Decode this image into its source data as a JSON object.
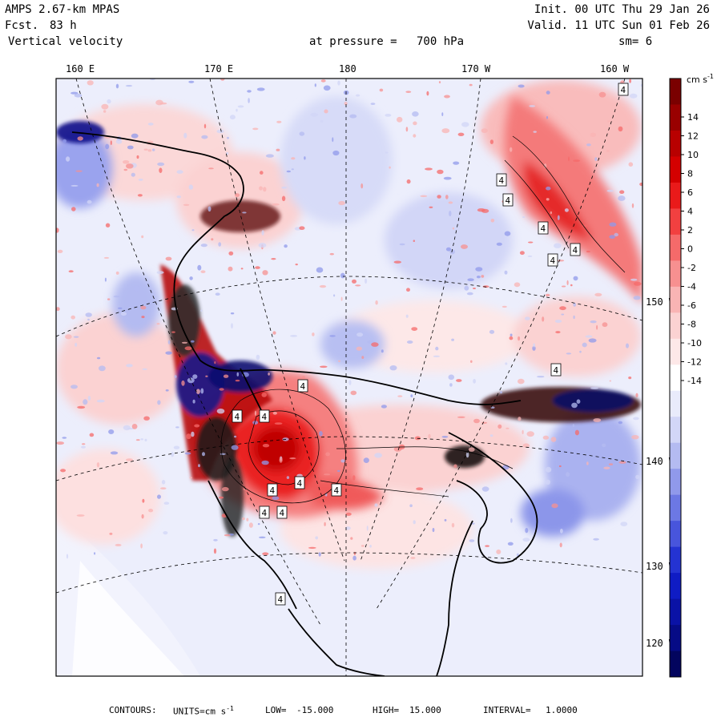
{
  "header": {
    "model": "AMPS 2.67-km MPAS",
    "fcst_label": "Fcst.",
    "fcst_value": "83 h",
    "field": "Vertical velocity",
    "pressure_label": "at pressure =",
    "pressure_value": "700 hPa",
    "init": "Init. 00 UTC Thu 29 Jan 26",
    "valid": "Valid. 11 UTC Sun 01 Feb 26",
    "smoothing": "sm= 6"
  },
  "map": {
    "longitude_labels": [
      "160 E",
      "170 E",
      "180",
      "170 W",
      "160 W"
    ],
    "latitude_labels": [
      "150 W",
      "140 W",
      "130 W",
      "120 W"
    ],
    "contour_markers": [
      "4",
      "4",
      "4",
      "4",
      "4",
      "4",
      "4",
      "4",
      "4",
      "4",
      "4",
      "4",
      "4",
      "4",
      "4",
      "4"
    ]
  },
  "colorbar": {
    "units": "cm s",
    "units_exp": "-1",
    "ticks": [
      "14",
      "12",
      "10",
      "8",
      "6",
      "4",
      "2",
      "0",
      "-2",
      "-4",
      "-6",
      "-8",
      "-10",
      "-12",
      "-14"
    ],
    "colors": [
      "#7a0000",
      "#990000",
      "#b80000",
      "#d40000",
      "#ea1a1a",
      "#f24040",
      "#f56a6a",
      "#f79090",
      "#f9b4b4",
      "#fbd2d2",
      "#fde8e8",
      "#ffffff",
      "#e9ebfb",
      "#d2d6f7",
      "#b4bbf1",
      "#9099eb",
      "#6c78e4",
      "#4855dc",
      "#2433d2",
      "#0f1cc4",
      "#0a12a6",
      "#060b86",
      "#03055e"
    ]
  },
  "footer": {
    "contours_label": "CONTOURS:",
    "units_label": "UNITS=cm s",
    "units_exp": "-1",
    "low_label": "LOW=",
    "low": "-15.000",
    "high_label": "HIGH=",
    "high": "15.000",
    "interval_label": "INTERVAL=",
    "interval": "1.0000"
  }
}
